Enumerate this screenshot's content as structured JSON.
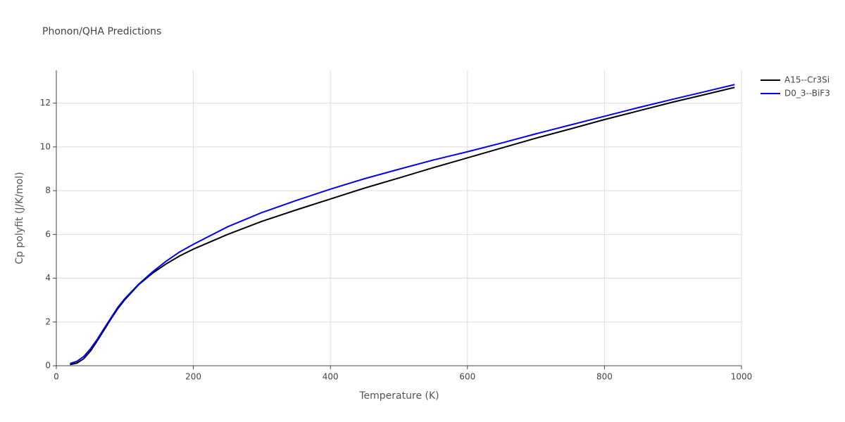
{
  "chart_data": {
    "type": "line",
    "title": "Phonon/QHA Predictions",
    "x_label": "Temperature (K)",
    "y_label": "Cp polyfit (J/K/mol)",
    "x": [
      20,
      30,
      40,
      50,
      60,
      70,
      80,
      90,
      100,
      120,
      140,
      160,
      180,
      200,
      250,
      300,
      350,
      400,
      450,
      500,
      550,
      600,
      650,
      700,
      750,
      800,
      850,
      900,
      950,
      990
    ],
    "series": [
      {
        "name": "A15--Cr3Si",
        "color": "#000000",
        "values": [
          0.05,
          0.12,
          0.32,
          0.68,
          1.15,
          1.65,
          2.15,
          2.62,
          3.02,
          3.7,
          4.22,
          4.65,
          5.02,
          5.33,
          6.0,
          6.6,
          7.12,
          7.62,
          8.12,
          8.58,
          9.05,
          9.5,
          9.95,
          10.4,
          10.82,
          11.25,
          11.65,
          12.05,
          12.42,
          12.72
        ]
      },
      {
        "name": "D0_3--BiF3",
        "color": "#0000ee",
        "values": [
          0.1,
          0.2,
          0.42,
          0.78,
          1.22,
          1.72,
          2.2,
          2.68,
          3.07,
          3.72,
          4.28,
          4.77,
          5.2,
          5.55,
          6.35,
          7.0,
          7.55,
          8.07,
          8.55,
          8.98,
          9.4,
          9.78,
          10.18,
          10.6,
          11.0,
          11.4,
          11.8,
          12.18,
          12.55,
          12.85
        ]
      }
    ],
    "xlim": [
      0,
      1000
    ],
    "xticks": [
      0,
      200,
      400,
      600,
      800,
      1000
    ],
    "ylim": [
      0,
      13.5
    ],
    "yticks": [
      0,
      2,
      4,
      6,
      8,
      10,
      12
    ],
    "grid": true,
    "legend": "top-right"
  }
}
